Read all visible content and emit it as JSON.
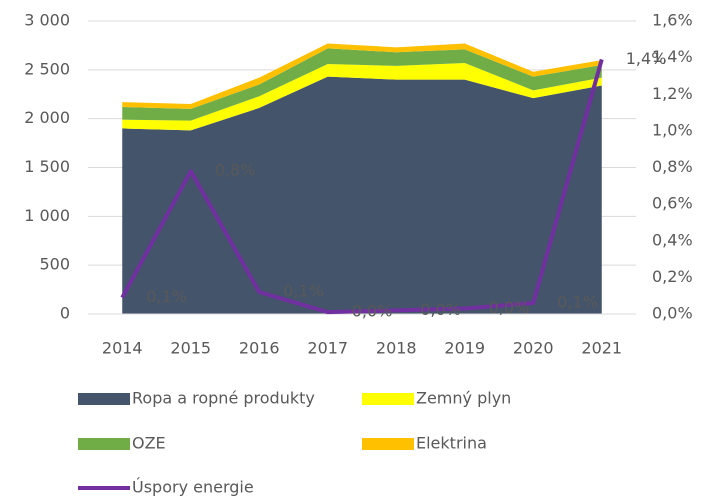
{
  "chart_data": {
    "type": "area",
    "stacked": true,
    "categories": [
      "2014",
      "2015",
      "2016",
      "2017",
      "2018",
      "2019",
      "2020",
      "2021"
    ],
    "series": [
      {
        "name": "Ropa a ropné produkty",
        "color": "#44546a",
        "values": [
          1900,
          1880,
          2110,
          2430,
          2400,
          2400,
          2210,
          2340
        ]
      },
      {
        "name": "Zemný plyn",
        "color": "#ffff00",
        "values": [
          90,
          100,
          120,
          130,
          140,
          170,
          80,
          80
        ]
      },
      {
        "name": "OZE",
        "color": "#70ad47",
        "values": [
          130,
          120,
          120,
          160,
          140,
          140,
          140,
          130
        ]
      },
      {
        "name": "Elektrina",
        "color": "#ffc000",
        "values": [
          50,
          50,
          70,
          50,
          50,
          60,
          50,
          50
        ]
      },
      {
        "name": "Úspory energie",
        "color": "#7030a0",
        "type": "line",
        "axis": "y2",
        "values": [
          0.09,
          0.78,
          0.12,
          0.01,
          0.02,
          0.03,
          0.06,
          1.39
        ],
        "value_labels": [
          "0,1%",
          "0,8%",
          "0,1%",
          "0,0%",
          "0,0%",
          "0,0%",
          "0,1%",
          "1,4%"
        ]
      }
    ],
    "ylim": [
      0,
      3000
    ],
    "yticks": [
      0,
      500,
      {
        "value": 1000,
        "label": "1 000"
      },
      {
        "value": 1500,
        "label": "1 500"
      },
      {
        "value": 2000,
        "label": "2 000"
      },
      {
        "value": 2500,
        "label": "2 500"
      },
      {
        "value": 3000,
        "label": "3 000"
      }
    ],
    "y2lim": [
      0,
      1.6
    ],
    "y2ticks": [
      {
        "value": 0,
        "label": "0,0%"
      },
      {
        "value": 0.2,
        "label": "0,2%"
      },
      {
        "value": 0.4,
        "label": "0,4%"
      },
      {
        "value": 0.6,
        "label": "0,6%"
      },
      {
        "value": 0.8,
        "label": "0,8%"
      },
      {
        "value": 1.0,
        "label": "1,0%"
      },
      {
        "value": 1.2,
        "label": "1,2%"
      },
      {
        "value": 1.4,
        "label": "1,4%"
      },
      {
        "value": 1.6,
        "label": "1,6%"
      }
    ],
    "grid": true,
    "legend": "bottom"
  }
}
